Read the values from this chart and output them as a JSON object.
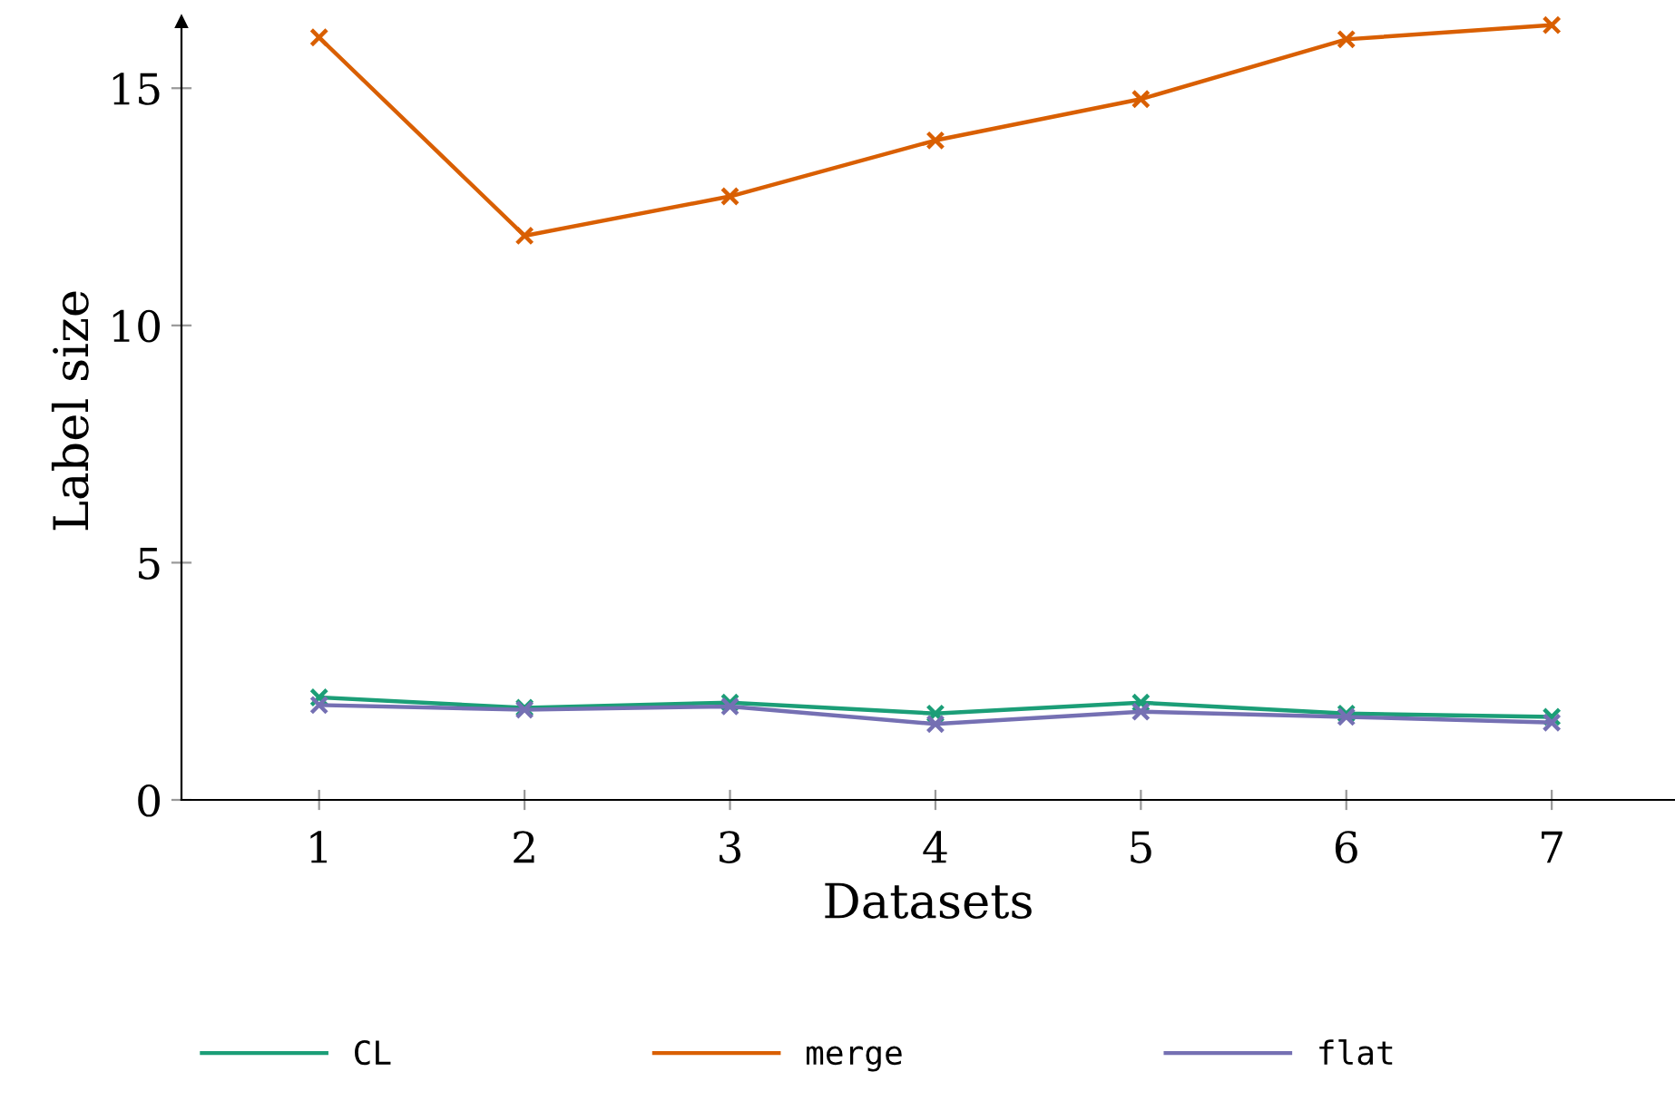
{
  "chart_data": {
    "type": "line",
    "xlabel": "Datasets",
    "ylabel": "Label size",
    "x": [
      1,
      2,
      3,
      4,
      5,
      6,
      7
    ],
    "xlim": [
      0.33,
      7.6
    ],
    "xticks": [
      1,
      2,
      3,
      4,
      5,
      6,
      7
    ],
    "ylim": [
      0,
      16.4
    ],
    "yticks": [
      0,
      5,
      10,
      15
    ],
    "marker": "cross",
    "grid": false,
    "legend": "bottom",
    "series": [
      {
        "name": "CL",
        "color": "#1b9e77",
        "values": [
          2.16,
          1.94,
          2.05,
          1.82,
          2.05,
          1.82,
          1.75
        ]
      },
      {
        "name": "merge",
        "color": "#d95f02",
        "values": [
          16.07,
          11.89,
          12.72,
          13.9,
          14.77,
          16.03,
          16.33
        ]
      },
      {
        "name": "flat",
        "color": "#7570b3",
        "values": [
          2.0,
          1.9,
          1.97,
          1.6,
          1.86,
          1.75,
          1.63
        ]
      }
    ]
  }
}
